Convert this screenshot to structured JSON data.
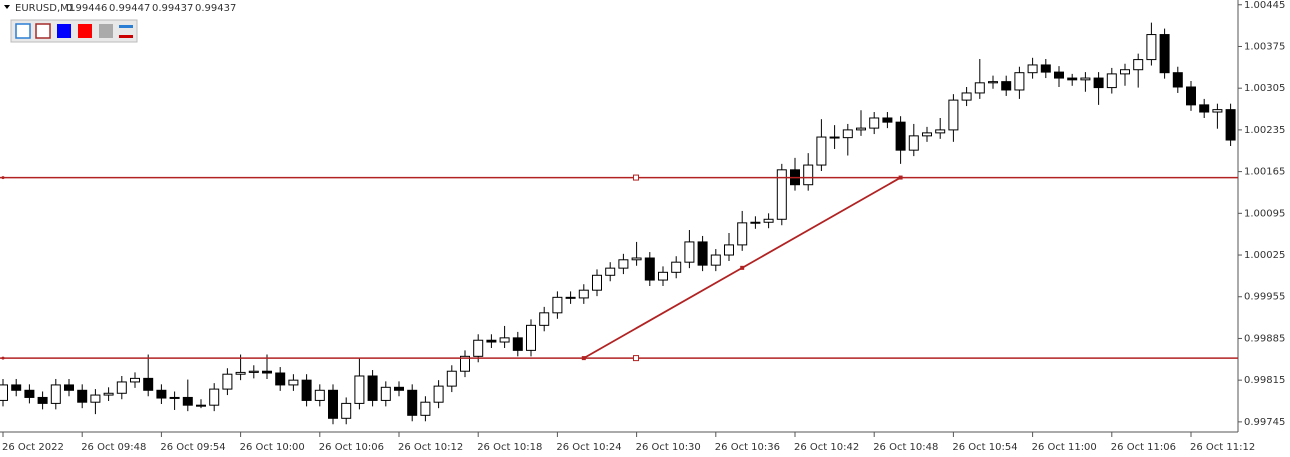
{
  "chart_data": {
    "type": "candlestick",
    "symbol": "EURUSD,M1",
    "header_prices": [
      0.99446,
      0.99447,
      0.99437,
      0.99437
    ],
    "categories": [
      "26 Oct 2022",
      null,
      null,
      null,
      null,
      null,
      "26 Oct 09:48",
      null,
      null,
      null,
      null,
      null,
      "26 Oct 09:54",
      null,
      null,
      null,
      null,
      null,
      "26 Oct 10:00",
      null,
      null,
      null,
      null,
      null,
      "26 Oct 10:06",
      null,
      null,
      null,
      null,
      null,
      "26 Oct 10:12",
      null,
      null,
      null,
      null,
      null,
      "26 Oct 10:18",
      null,
      null,
      null,
      null,
      null,
      "26 Oct 10:24",
      null,
      null,
      null,
      null,
      null,
      "26 Oct 10:30",
      null,
      null,
      null,
      null,
      null,
      "26 Oct 10:36",
      null,
      null,
      null,
      null,
      null,
      "26 Oct 10:42",
      null,
      null,
      null,
      null,
      null,
      "26 Oct 10:48",
      null,
      null,
      null,
      null,
      null,
      "26 Oct 10:54",
      null,
      null,
      null,
      null,
      null,
      "26 Oct 11:00",
      null,
      null,
      null,
      null,
      null,
      "26 Oct 11:06",
      null,
      null,
      null,
      null,
      null,
      "26 Oct 11:12",
      null,
      null,
      null
    ],
    "open": [
      0.99781,
      0.99807,
      0.99798,
      0.99786,
      0.99776,
      0.99807,
      0.99798,
      0.99778,
      0.9979,
      0.99793,
      0.99812,
      0.99818,
      0.99798,
      0.99785,
      0.99786,
      0.99773,
      0.99773,
      0.998,
      0.99825,
      0.99828,
      0.9983,
      0.99827,
      0.99807,
      0.99815,
      0.99781,
      0.99798,
      0.99751,
      0.99776,
      0.99822,
      0.99781,
      0.99803,
      0.99798,
      0.99756,
      0.99778,
      0.99805,
      0.9983,
      0.99855,
      0.99882,
      0.99879,
      0.99886,
      0.99865,
      0.99907,
      0.99928,
      0.99954,
      0.99953,
      0.99966,
      0.99991,
      1.00003,
      1.00017,
      1.0002,
      0.99983,
      0.99996,
      1.00013,
      1.00047,
      1.00008,
      1.00025,
      1.00042,
      1.00079,
      1.0008,
      1.00085,
      1.00168,
      1.00143,
      1.00176,
      1.00223,
      1.00222,
      1.00235,
      1.00238,
      1.00255,
      1.00248,
      1.00201,
      1.00225,
      1.0023,
      1.00235,
      1.00285,
      1.00297,
      1.00314,
      1.00316,
      1.00302,
      1.00331,
      1.00344,
      1.00332,
      1.00322,
      1.00319,
      1.00322,
      1.00306,
      1.00329,
      1.00336,
      1.00353,
      1.00395,
      1.00331,
      1.00307,
      1.00277,
      1.00265,
      1.00269
    ],
    "high": [
      0.99817,
      0.99817,
      0.99808,
      0.99796,
      0.99817,
      0.99817,
      0.99808,
      0.998,
      0.99803,
      0.99822,
      0.99828,
      0.99858,
      0.99808,
      0.99796,
      0.99816,
      0.99783,
      0.9981,
      0.99835,
      0.99858,
      0.9984,
      0.99858,
      0.99837,
      0.99825,
      0.99825,
      0.99808,
      0.99808,
      0.99786,
      0.99852,
      0.99832,
      0.99813,
      0.99813,
      0.99808,
      0.99788,
      0.99815,
      0.9984,
      0.99865,
      0.99892,
      0.99892,
      0.99906,
      0.99896,
      0.99917,
      0.99938,
      0.99964,
      0.99964,
      0.99976,
      1.00001,
      1.00013,
      1.00027,
      1.00047,
      1.0003,
      1.00006,
      1.00023,
      1.00067,
      1.00057,
      1.00035,
      1.00062,
      1.00099,
      1.0009,
      1.00095,
      1.00178,
      1.00188,
      1.00196,
      1.00253,
      1.00243,
      1.00245,
      1.00268,
      1.00265,
      1.00265,
      1.00258,
      1.00245,
      1.0024,
      1.00255,
      1.00295,
      1.00307,
      1.00354,
      1.00326,
      1.00326,
      1.00341,
      1.00356,
      1.00354,
      1.00342,
      1.00329,
      1.00332,
      1.00332,
      1.00339,
      1.00346,
      1.00363,
      1.00415,
      1.00405,
      1.00341,
      1.00317,
      1.00287,
      1.00279,
      1.00279
    ],
    "low": [
      0.99771,
      0.99788,
      0.99776,
      0.99766,
      0.99766,
      0.99788,
      0.99768,
      0.99758,
      0.9978,
      0.99783,
      0.99802,
      0.99788,
      0.99775,
      0.99765,
      0.99763,
      0.99768,
      0.99763,
      0.9979,
      0.99815,
      0.99818,
      0.99817,
      0.99797,
      0.99797,
      0.99771,
      0.99771,
      0.99741,
      0.99741,
      0.99766,
      0.99771,
      0.99771,
      0.99788,
      0.99746,
      0.99746,
      0.99768,
      0.99795,
      0.9982,
      0.99845,
      0.99869,
      0.99869,
      0.99855,
      0.99855,
      0.99897,
      0.99918,
      0.99943,
      0.99943,
      0.99956,
      0.99981,
      0.99993,
      1.00007,
      0.99973,
      0.99973,
      0.99986,
      1.00003,
      0.99998,
      0.99998,
      1.00015,
      1.00032,
      1.00069,
      1.0007,
      1.00075,
      1.00133,
      1.00133,
      1.00166,
      1.00203,
      1.00192,
      1.00225,
      1.00228,
      1.00238,
      1.00178,
      1.00191,
      1.00215,
      1.0022,
      1.00215,
      1.00275,
      1.00287,
      1.00304,
      1.00292,
      1.00287,
      1.00321,
      1.00322,
      1.00307,
      1.00309,
      1.00299,
      1.00277,
      1.00296,
      1.00309,
      1.00306,
      1.00343,
      1.00321,
      1.00297,
      1.00267,
      1.00255,
      1.00237,
      1.00208
    ],
    "close": [
      0.99807,
      0.99798,
      0.99786,
      0.99776,
      0.99807,
      0.99798,
      0.99778,
      0.9979,
      0.99793,
      0.99812,
      0.99818,
      0.99798,
      0.99785,
      0.99786,
      0.99773,
      0.99773,
      0.998,
      0.99825,
      0.99828,
      0.9983,
      0.99827,
      0.99807,
      0.99815,
      0.99781,
      0.99798,
      0.99751,
      0.99776,
      0.99822,
      0.99781,
      0.99803,
      0.99798,
      0.99756,
      0.99778,
      0.99805,
      0.9983,
      0.99855,
      0.99882,
      0.99879,
      0.99886,
      0.99865,
      0.99907,
      0.99928,
      0.99954,
      0.99953,
      0.99966,
      0.99991,
      1.00003,
      1.00017,
      1.0002,
      0.99983,
      0.99996,
      1.00013,
      1.00047,
      1.00008,
      1.00025,
      1.00042,
      1.00079,
      1.0008,
      1.00085,
      1.00168,
      1.00143,
      1.00176,
      1.00223,
      1.00222,
      1.00235,
      1.00238,
      1.00255,
      1.00248,
      1.00201,
      1.00225,
      1.0023,
      1.00235,
      1.00285,
      1.00297,
      1.00314,
      1.00316,
      1.00302,
      1.00331,
      1.00344,
      1.00332,
      1.00322,
      1.00319,
      1.00322,
      1.00306,
      1.00329,
      1.00336,
      1.00353,
      1.00395,
      1.00331,
      1.00307,
      1.00277,
      1.00265,
      1.00269,
      1.00218
    ],
    "ylim": [
      0.99728,
      1.00453
    ],
    "yticks": [
      1.00445,
      1.00375,
      1.00305,
      1.00235,
      1.00165,
      1.00095,
      1.00025,
      0.99955,
      0.99885,
      0.99815,
      0.99745
    ],
    "horizontal_lines": [
      1.00155,
      0.99852
    ],
    "trend_line": {
      "x": [
        44,
        68
      ],
      "y": [
        0.99852,
        1.00155
      ]
    },
    "line_color": "#b22222"
  }
}
